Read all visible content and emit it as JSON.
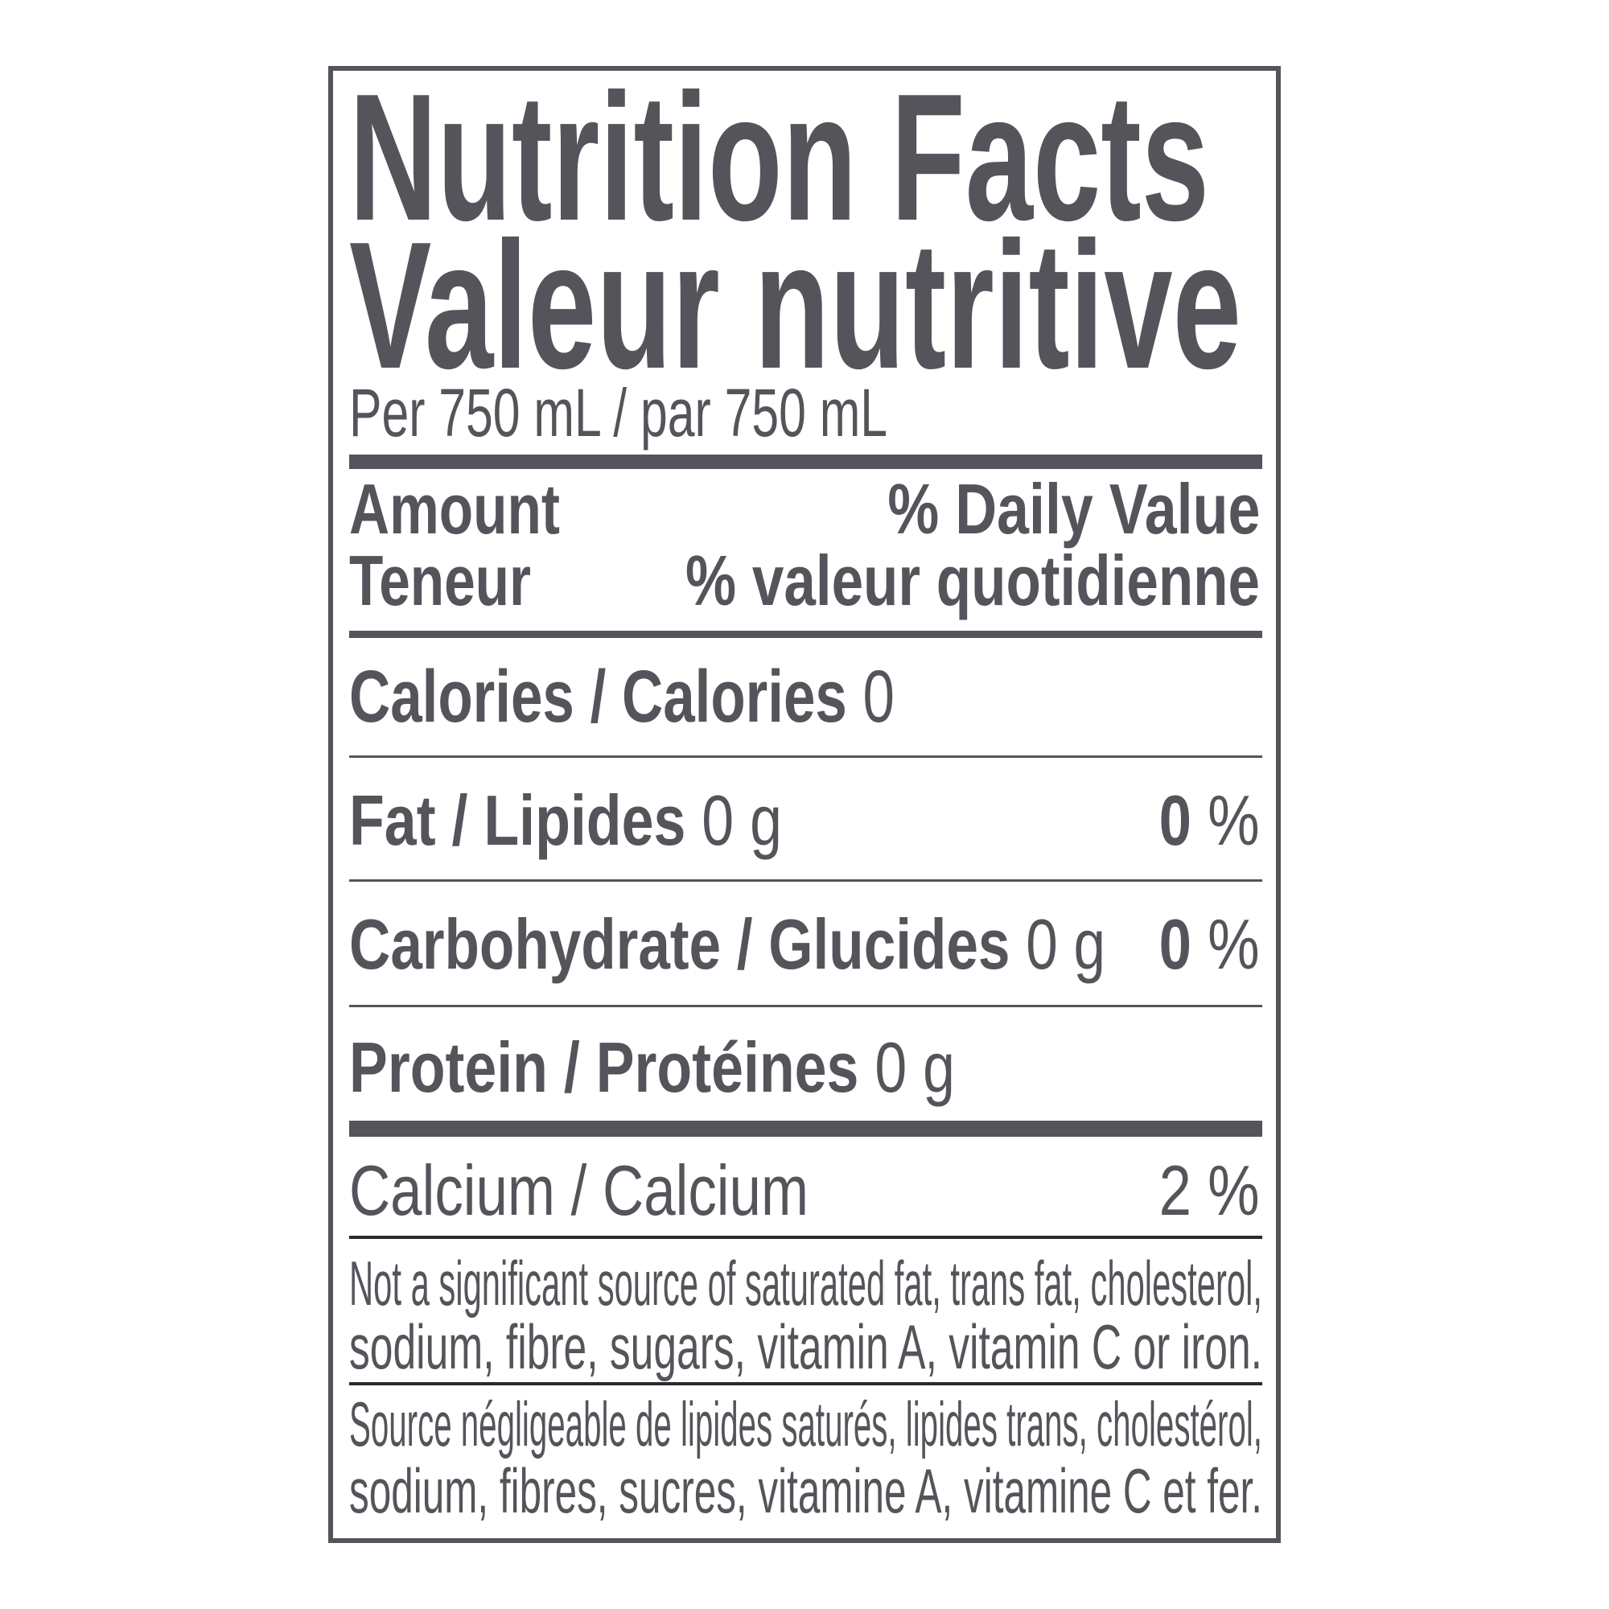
{
  "header": {
    "title_en": "Nutrition Facts",
    "title_fr": "Valeur nutritive",
    "serving": "Per 750 mL / par 750 mL"
  },
  "columns": {
    "amount_en": "Amount",
    "amount_fr": "Teneur",
    "dv_en": "% Daily Value",
    "dv_fr": "% valeur quotidienne"
  },
  "nutrients": [
    {
      "label": "Calories / Calories",
      "amount": "0",
      "dv": ""
    },
    {
      "label": "Fat / Lipides",
      "amount": "0 g",
      "dv_value": "0",
      "dv_unit": "%"
    },
    {
      "label": "Carbohydrate / Glucides",
      "amount": "0 g",
      "dv_value": "0",
      "dv_unit": "%"
    },
    {
      "label": "Protein / Protéines",
      "amount": "0 g",
      "dv": ""
    }
  ],
  "micronutrients": [
    {
      "label": "Calcium / Calcium",
      "dv": "2 %"
    }
  ],
  "footnotes": {
    "en_line1": "Not a significant source of saturated fat, trans fat, cholesterol,",
    "en_line2": "sodium, fibre, sugars, vitamin A, vitamin C or iron.",
    "fr_line1": "Source négligeable de lipides saturés, lipides trans, cholestérol,",
    "fr_line2": "sodium, fibres, sucres, vitamine A, vitamine C et fer."
  },
  "colors": {
    "text": "#55545b",
    "rule": "#55545b"
  }
}
